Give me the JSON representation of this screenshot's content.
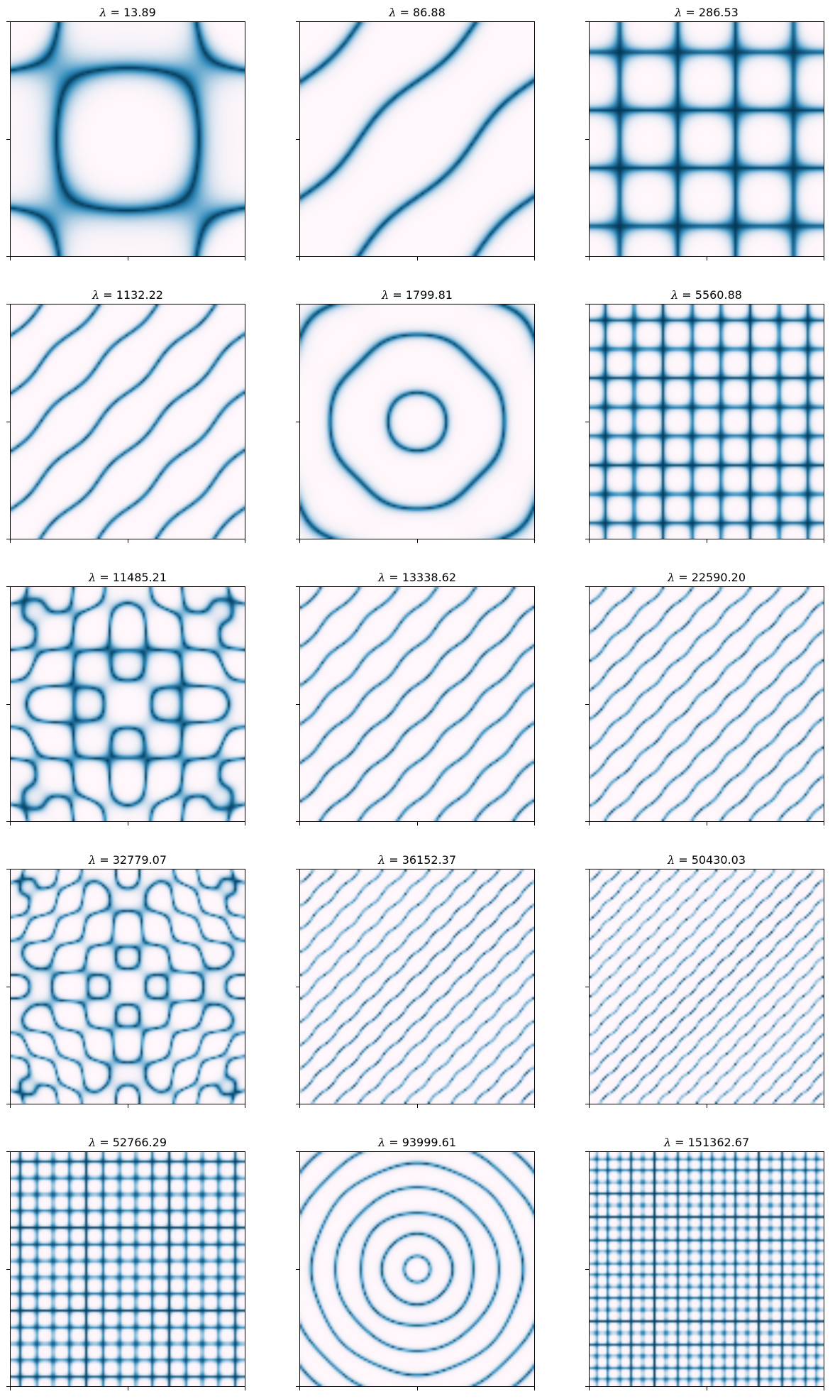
{
  "chart_data": {
    "type": "heatmap",
    "layout": {
      "rows": 5,
      "columns": 3
    },
    "colormap": {
      "name": "PuBu",
      "low": "#fff7fb",
      "high": "#023858"
    },
    "ticks": {
      "x": [
        0,
        0.5,
        1
      ],
      "y": [
        0,
        0.5,
        1
      ],
      "labels": false
    },
    "panels": [
      {
        "title_prefix": "λ",
        "value": "13.89",
        "pattern": "cross",
        "params": [
          1
        ]
      },
      {
        "title_prefix": "λ",
        "value": "86.88",
        "pattern": "diagonal",
        "params": [
          1
        ]
      },
      {
        "title_prefix": "λ",
        "value": "286.53",
        "pattern": "grid",
        "params": [
          2
        ]
      },
      {
        "title_prefix": "λ",
        "value": "1132.22",
        "pattern": "diagonal",
        "params": [
          2
        ]
      },
      {
        "title_prefix": "λ",
        "value": "1799.81",
        "pattern": "rings",
        "params": [
          2
        ]
      },
      {
        "title_prefix": "λ",
        "value": "5560.88",
        "pattern": "grid",
        "params": [
          4
        ]
      },
      {
        "title_prefix": "λ",
        "value": "11485.21",
        "pattern": "cross",
        "params": [
          3
        ]
      },
      {
        "title_prefix": "λ",
        "value": "13338.62",
        "pattern": "diagonal",
        "params": [
          3
        ]
      },
      {
        "title_prefix": "λ",
        "value": "22590.20",
        "pattern": "diagonal",
        "params": [
          4
        ]
      },
      {
        "title_prefix": "λ",
        "value": "32779.07",
        "pattern": "cross",
        "params": [
          4
        ]
      },
      {
        "title_prefix": "λ",
        "value": "36152.37",
        "pattern": "diagonal",
        "params": [
          5
        ]
      },
      {
        "title_prefix": "λ",
        "value": "50430.03",
        "pattern": "diagonal",
        "params": [
          6
        ]
      },
      {
        "title_prefix": "λ",
        "value": "52766.29",
        "pattern": "grid",
        "params": [
          7
        ]
      },
      {
        "title_prefix": "λ",
        "value": "93999.61",
        "pattern": "rings",
        "params": [
          5
        ]
      },
      {
        "title_prefix": "λ",
        "value": "151362.67",
        "pattern": "grid",
        "params": [
          10
        ]
      }
    ]
  }
}
